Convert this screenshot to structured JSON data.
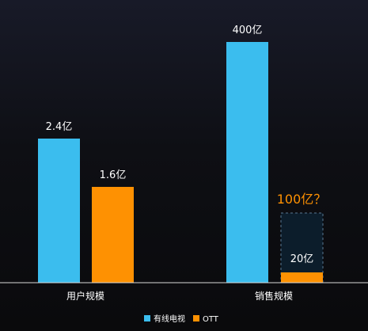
{
  "chart_data": {
    "type": "bar",
    "categories": [
      "用户规模",
      "销售规模"
    ],
    "series": [
      {
        "name": "有线电视",
        "color": "#3bbdee",
        "labels": [
          "2.4亿",
          "400亿"
        ]
      },
      {
        "name": "OTT",
        "color": "#fe9102",
        "labels": [
          "1.6亿",
          "20亿"
        ]
      }
    ],
    "annotation": {
      "label": "100亿？",
      "color": "#fe9102",
      "series": "OTT",
      "category": "销售规模"
    },
    "legend_position": "bottom-center",
    "grid": false
  },
  "colors": {
    "baseline": "#d8d8d8",
    "text": "#ffffff",
    "dashed_box_fill": "#0c1d2b",
    "dashed_box_stroke": "#5a7890"
  }
}
